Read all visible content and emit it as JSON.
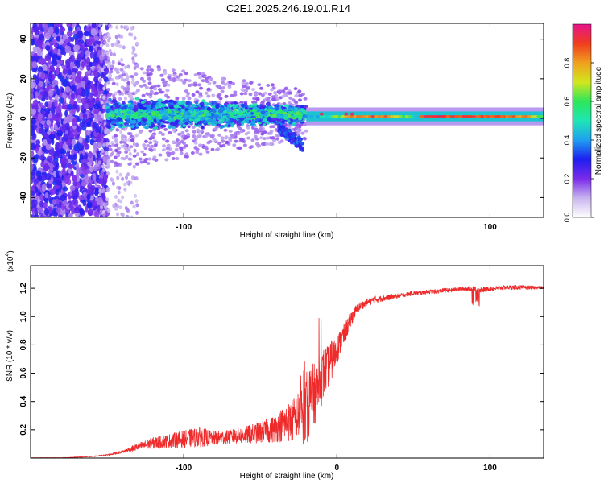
{
  "title": "C2E1.2025.246.19.01.R14",
  "colors": {
    "axis": "#000000",
    "snr_line": "#ee2a2a",
    "background": "#ffffff"
  },
  "chart_data": [
    {
      "type": "heatmap",
      "name": "spectrogram",
      "xlabel": "Height of straight line (km)",
      "ylabel": "Frequency (Hz)",
      "xlim": [
        -200,
        135
      ],
      "ylim": [
        -50,
        48
      ],
      "xticks": [
        -100,
        0,
        100
      ],
      "xtick_labels": [
        "-100",
        "",
        "100"
      ],
      "yticks": [
        -40,
        -20,
        0,
        20,
        40
      ],
      "ytick_labels": [
        "-40",
        "-20",
        "0",
        "20",
        "40"
      ],
      "colorbar": {
        "label": "Normalized spectral amplitude",
        "range": [
          0,
          1
        ],
        "ticks": [
          0.0,
          0.2,
          0.4,
          0.6,
          0.8
        ],
        "tick_labels": [
          "0.0",
          "0.2",
          "0.4",
          "0.6",
          "0.8"
        ],
        "colormap": [
          "#ffffff",
          "#c8b4f0",
          "#7a2bea",
          "#1e1ef0",
          "#1ea0f0",
          "#1ee6b4",
          "#2ce65a",
          "#d2e61e",
          "#f0a01e",
          "#f03c1e",
          "#e6148c"
        ]
      },
      "features": [
        {
          "region": "broadband noise",
          "x_range": [
            -200,
            -150
          ],
          "y_range": [
            -50,
            48
          ],
          "amplitude": 0.2
        },
        {
          "region": "scattered signal",
          "x_range": [
            -150,
            -20
          ],
          "center_hz": 2,
          "spread_hz": 8,
          "amplitude": 0.4
        },
        {
          "region": "steady carrier",
          "x_range": [
            -20,
            135
          ],
          "center_hz": 1,
          "spread_hz": 2,
          "amplitude": 0.85
        }
      ]
    },
    {
      "type": "line",
      "name": "snr",
      "xlabel": "Height of straight line (km)",
      "ylabel": "SNR (10 * v/v)",
      "y_multiplier": "(x10",
      "y_multiplier_exp": "4",
      "y_multiplier_close": ")",
      "xlim": [
        -200,
        135
      ],
      "ylim": [
        0,
        1.36
      ],
      "xticks": [
        -100,
        0,
        100
      ],
      "xtick_labels": [
        "-100",
        "0",
        "100"
      ],
      "yticks": [
        0.2,
        0.4,
        0.6,
        0.8,
        1.0,
        1.2
      ],
      "ytick_labels": [
        "0.2",
        "0.4",
        "0.6",
        "0.8",
        "1.0",
        "1.2"
      ],
      "series": [
        {
          "name": "SNR",
          "x": [
            -200,
            -180,
            -160,
            -150,
            -140,
            -130,
            -120,
            -110,
            -100,
            -90,
            -80,
            -70,
            -60,
            -50,
            -40,
            -35,
            -30,
            -25,
            -22,
            -20,
            -18,
            -15,
            -12,
            -10,
            -8,
            -6,
            -4,
            -2,
            0,
            2,
            5,
            8,
            10,
            12,
            15,
            20,
            25,
            30,
            35,
            40,
            45,
            50,
            55,
            60,
            65,
            70,
            75,
            80,
            85,
            90,
            95,
            100,
            110,
            120,
            135
          ],
          "center": [
            0.0,
            0.0,
            0.01,
            0.02,
            0.04,
            0.07,
            0.09,
            0.1,
            0.11,
            0.12,
            0.12,
            0.13,
            0.14,
            0.15,
            0.17,
            0.19,
            0.2,
            0.22,
            0.23,
            0.25,
            0.3,
            0.35,
            0.42,
            0.48,
            0.55,
            0.58,
            0.62,
            0.67,
            0.72,
            0.78,
            0.85,
            0.93,
            0.98,
            1.02,
            1.06,
            1.09,
            1.11,
            1.12,
            1.13,
            1.14,
            1.15,
            1.16,
            1.16,
            1.17,
            1.17,
            1.18,
            1.18,
            1.19,
            1.19,
            1.19,
            1.18,
            1.19,
            1.2,
            1.2,
            1.2
          ],
          "spread": [
            0.005,
            0.005,
            0.006,
            0.01,
            0.02,
            0.05,
            0.08,
            0.1,
            0.12,
            0.14,
            0.1,
            0.1,
            0.12,
            0.15,
            0.2,
            0.25,
            0.3,
            0.35,
            0.45,
            0.5,
            0.55,
            0.45,
            0.4,
            0.4,
            0.35,
            0.3,
            0.3,
            0.25,
            0.2,
            0.18,
            0.15,
            0.12,
            0.1,
            0.08,
            0.06,
            0.05,
            0.05,
            0.04,
            0.04,
            0.03,
            0.03,
            0.03,
            0.03,
            0.03,
            0.03,
            0.03,
            0.03,
            0.03,
            0.03,
            0.04,
            0.04,
            0.03,
            0.03,
            0.03,
            0.02
          ]
        }
      ]
    }
  ]
}
